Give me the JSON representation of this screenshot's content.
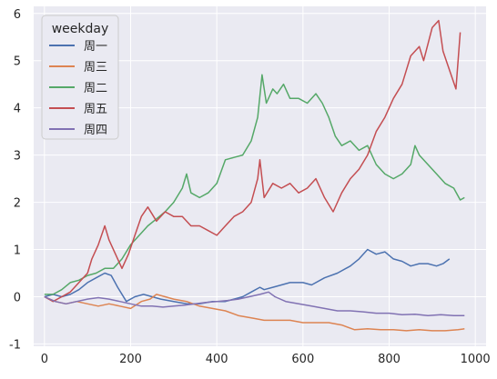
{
  "chart_data": {
    "type": "line",
    "title": "",
    "xlabel": "",
    "ylabel": "",
    "xlim": [
      -25,
      1025
    ],
    "ylim": [
      -1.05,
      6.15
    ],
    "x_ticks": [
      0,
      200,
      400,
      600,
      800,
      1000
    ],
    "y_ticks": [
      -1,
      0,
      1,
      2,
      3,
      4,
      5,
      6
    ],
    "x_tick_labels": [
      "0",
      "200",
      "400",
      "600",
      "800",
      "1000"
    ],
    "y_tick_labels": [
      "-1",
      "0",
      "1",
      "2",
      "3",
      "4",
      "5",
      "6"
    ],
    "grid": true,
    "background": "#eaeaf2",
    "legend": {
      "title": "weekday",
      "position": "top-left"
    },
    "series": [
      {
        "name": "周一",
        "color": "#4c72b0",
        "points": [
          [
            0,
            0.0
          ],
          [
            20,
            0.05
          ],
          [
            40,
            0.0
          ],
          [
            60,
            0.05
          ],
          [
            80,
            0.15
          ],
          [
            100,
            0.3
          ],
          [
            120,
            0.4
          ],
          [
            140,
            0.5
          ],
          [
            155,
            0.45
          ],
          [
            170,
            0.2
          ],
          [
            190,
            -0.1
          ],
          [
            210,
            0.0
          ],
          [
            230,
            0.05
          ],
          [
            250,
            0.0
          ],
          [
            270,
            -0.05
          ],
          [
            300,
            -0.1
          ],
          [
            330,
            -0.15
          ],
          [
            360,
            -0.15
          ],
          [
            390,
            -0.1
          ],
          [
            420,
            -0.1
          ],
          [
            440,
            -0.05
          ],
          [
            460,
            0.0
          ],
          [
            480,
            0.1
          ],
          [
            500,
            0.2
          ],
          [
            510,
            0.15
          ],
          [
            530,
            0.2
          ],
          [
            550,
            0.25
          ],
          [
            570,
            0.3
          ],
          [
            600,
            0.3
          ],
          [
            620,
            0.25
          ],
          [
            650,
            0.4
          ],
          [
            680,
            0.5
          ],
          [
            710,
            0.65
          ],
          [
            730,
            0.8
          ],
          [
            750,
            1.0
          ],
          [
            770,
            0.9
          ],
          [
            790,
            0.95
          ],
          [
            810,
            0.8
          ],
          [
            830,
            0.75
          ],
          [
            850,
            0.65
          ],
          [
            870,
            0.7
          ],
          [
            890,
            0.7
          ],
          [
            910,
            0.65
          ],
          [
            925,
            0.7
          ],
          [
            940,
            0.8
          ]
        ]
      },
      {
        "name": "周三",
        "color": "#dd8452",
        "points": [
          [
            0,
            0.0
          ],
          [
            25,
            -0.1
          ],
          [
            50,
            -0.15
          ],
          [
            75,
            -0.1
          ],
          [
            100,
            -0.15
          ],
          [
            125,
            -0.2
          ],
          [
            150,
            -0.15
          ],
          [
            175,
            -0.2
          ],
          [
            200,
            -0.25
          ],
          [
            225,
            -0.1
          ],
          [
            245,
            -0.05
          ],
          [
            260,
            0.05
          ],
          [
            280,
            0.0
          ],
          [
            300,
            -0.05
          ],
          [
            330,
            -0.1
          ],
          [
            360,
            -0.2
          ],
          [
            390,
            -0.25
          ],
          [
            420,
            -0.3
          ],
          [
            450,
            -0.4
          ],
          [
            480,
            -0.45
          ],
          [
            510,
            -0.5
          ],
          [
            540,
            -0.5
          ],
          [
            570,
            -0.5
          ],
          [
            600,
            -0.55
          ],
          [
            630,
            -0.55
          ],
          [
            660,
            -0.55
          ],
          [
            690,
            -0.6
          ],
          [
            720,
            -0.7
          ],
          [
            750,
            -0.68
          ],
          [
            780,
            -0.7
          ],
          [
            810,
            -0.7
          ],
          [
            840,
            -0.72
          ],
          [
            870,
            -0.7
          ],
          [
            900,
            -0.72
          ],
          [
            930,
            -0.72
          ],
          [
            960,
            -0.7
          ],
          [
            975,
            -0.68
          ]
        ]
      },
      {
        "name": "周二",
        "color": "#55a868",
        "points": [
          [
            0,
            0.05
          ],
          [
            20,
            0.05
          ],
          [
            40,
            0.15
          ],
          [
            60,
            0.3
          ],
          [
            80,
            0.35
          ],
          [
            100,
            0.45
          ],
          [
            120,
            0.5
          ],
          [
            140,
            0.6
          ],
          [
            160,
            0.6
          ],
          [
            180,
            0.8
          ],
          [
            200,
            1.1
          ],
          [
            220,
            1.3
          ],
          [
            240,
            1.5
          ],
          [
            260,
            1.65
          ],
          [
            280,
            1.8
          ],
          [
            300,
            2.0
          ],
          [
            320,
            2.3
          ],
          [
            330,
            2.6
          ],
          [
            340,
            2.2
          ],
          [
            360,
            2.1
          ],
          [
            380,
            2.2
          ],
          [
            400,
            2.4
          ],
          [
            420,
            2.9
          ],
          [
            440,
            2.95
          ],
          [
            460,
            3.0
          ],
          [
            480,
            3.3
          ],
          [
            495,
            3.8
          ],
          [
            505,
            4.7
          ],
          [
            515,
            4.1
          ],
          [
            530,
            4.4
          ],
          [
            540,
            4.3
          ],
          [
            555,
            4.5
          ],
          [
            570,
            4.2
          ],
          [
            590,
            4.2
          ],
          [
            610,
            4.1
          ],
          [
            630,
            4.3
          ],
          [
            645,
            4.1
          ],
          [
            660,
            3.8
          ],
          [
            675,
            3.4
          ],
          [
            690,
            3.2
          ],
          [
            710,
            3.3
          ],
          [
            730,
            3.1
          ],
          [
            750,
            3.2
          ],
          [
            770,
            2.8
          ],
          [
            790,
            2.6
          ],
          [
            810,
            2.5
          ],
          [
            830,
            2.6
          ],
          [
            850,
            2.8
          ],
          [
            860,
            3.2
          ],
          [
            870,
            3.0
          ],
          [
            890,
            2.8
          ],
          [
            910,
            2.6
          ],
          [
            930,
            2.4
          ],
          [
            950,
            2.3
          ],
          [
            965,
            2.05
          ],
          [
            975,
            2.1
          ]
        ]
      },
      {
        "name": "周五",
        "color": "#c44e52",
        "points": [
          [
            0,
            0.0
          ],
          [
            20,
            -0.1
          ],
          [
            40,
            0.0
          ],
          [
            60,
            0.1
          ],
          [
            80,
            0.3
          ],
          [
            100,
            0.5
          ],
          [
            110,
            0.8
          ],
          [
            125,
            1.1
          ],
          [
            140,
            1.5
          ],
          [
            150,
            1.2
          ],
          [
            165,
            0.9
          ],
          [
            180,
            0.6
          ],
          [
            195,
            0.9
          ],
          [
            210,
            1.3
          ],
          [
            225,
            1.7
          ],
          [
            240,
            1.9
          ],
          [
            260,
            1.6
          ],
          [
            280,
            1.8
          ],
          [
            300,
            1.7
          ],
          [
            320,
            1.7
          ],
          [
            340,
            1.5
          ],
          [
            360,
            1.5
          ],
          [
            380,
            1.4
          ],
          [
            400,
            1.3
          ],
          [
            420,
            1.5
          ],
          [
            440,
            1.7
          ],
          [
            460,
            1.8
          ],
          [
            480,
            2.0
          ],
          [
            495,
            2.5
          ],
          [
            500,
            2.9
          ],
          [
            510,
            2.1
          ],
          [
            530,
            2.4
          ],
          [
            550,
            2.3
          ],
          [
            570,
            2.4
          ],
          [
            590,
            2.2
          ],
          [
            610,
            2.3
          ],
          [
            630,
            2.5
          ],
          [
            650,
            2.1
          ],
          [
            670,
            1.8
          ],
          [
            690,
            2.2
          ],
          [
            710,
            2.5
          ],
          [
            730,
            2.7
          ],
          [
            750,
            3.0
          ],
          [
            770,
            3.5
          ],
          [
            790,
            3.8
          ],
          [
            810,
            4.2
          ],
          [
            830,
            4.5
          ],
          [
            850,
            5.1
          ],
          [
            870,
            5.3
          ],
          [
            880,
            5.0
          ],
          [
            900,
            5.7
          ],
          [
            915,
            5.85
          ],
          [
            925,
            5.2
          ],
          [
            940,
            4.8
          ],
          [
            955,
            4.4
          ],
          [
            965,
            5.6
          ]
        ]
      },
      {
        "name": "周四",
        "color": "#8172b3",
        "points": [
          [
            0,
            0.0
          ],
          [
            25,
            -0.1
          ],
          [
            50,
            -0.15
          ],
          [
            75,
            -0.1
          ],
          [
            100,
            -0.05
          ],
          [
            125,
            -0.02
          ],
          [
            150,
            -0.05
          ],
          [
            175,
            -0.1
          ],
          [
            200,
            -0.15
          ],
          [
            225,
            -0.2
          ],
          [
            250,
            -0.2
          ],
          [
            275,
            -0.22
          ],
          [
            300,
            -0.2
          ],
          [
            325,
            -0.18
          ],
          [
            350,
            -0.15
          ],
          [
            375,
            -0.12
          ],
          [
            400,
            -0.1
          ],
          [
            425,
            -0.08
          ],
          [
            450,
            -0.05
          ],
          [
            475,
            0.0
          ],
          [
            500,
            0.05
          ],
          [
            520,
            0.1
          ],
          [
            535,
            0.0
          ],
          [
            560,
            -0.1
          ],
          [
            590,
            -0.15
          ],
          [
            620,
            -0.2
          ],
          [
            650,
            -0.25
          ],
          [
            680,
            -0.3
          ],
          [
            710,
            -0.3
          ],
          [
            740,
            -0.32
          ],
          [
            770,
            -0.35
          ],
          [
            800,
            -0.35
          ],
          [
            830,
            -0.38
          ],
          [
            860,
            -0.37
          ],
          [
            890,
            -0.4
          ],
          [
            920,
            -0.38
          ],
          [
            950,
            -0.4
          ],
          [
            975,
            -0.4
          ]
        ]
      }
    ]
  }
}
